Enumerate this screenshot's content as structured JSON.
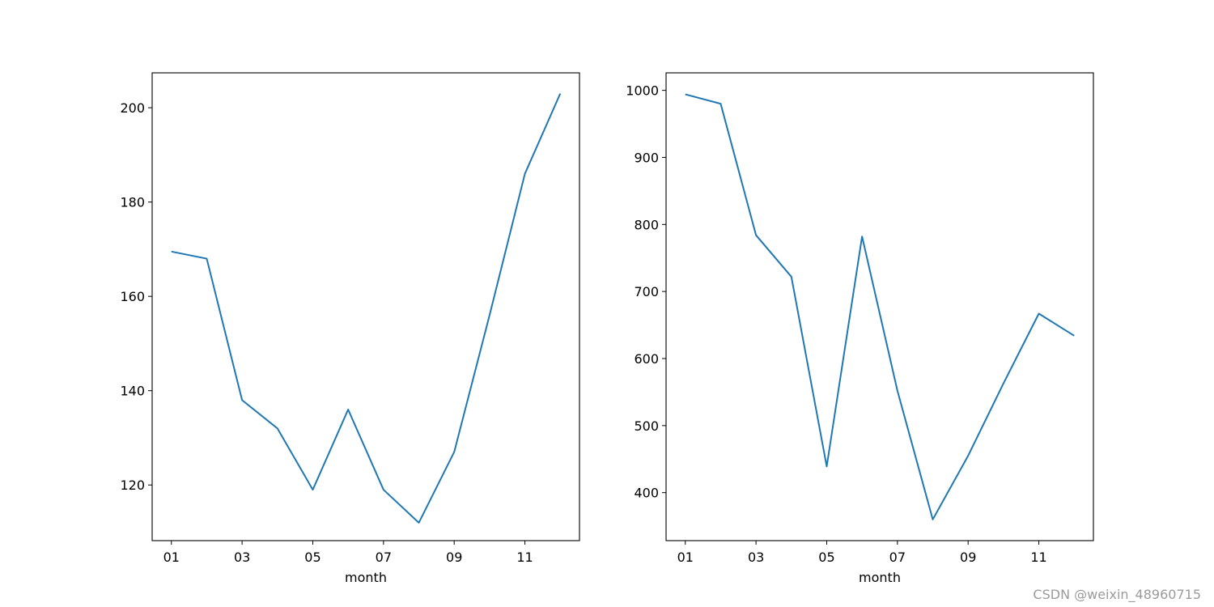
{
  "colors": {
    "line": "#1f77b4",
    "axes": "#000000",
    "watermark": "#9a9a9a"
  },
  "watermark": "CSDN @weixin_48960715",
  "chart_data": [
    {
      "type": "line",
      "title": "",
      "xlabel": "month",
      "ylabel": "",
      "categories": [
        "01",
        "02",
        "03",
        "04",
        "05",
        "06",
        "07",
        "08",
        "09",
        "10",
        "11",
        "12"
      ],
      "xtick_labels": [
        "01",
        "03",
        "05",
        "07",
        "09",
        "11"
      ],
      "values": [
        169.5,
        168,
        138,
        132,
        119,
        136,
        119,
        112,
        127,
        156,
        186,
        203
      ],
      "ylim": [
        108.2,
        207.4
      ],
      "yticks": [
        120,
        140,
        160,
        180,
        200
      ],
      "grid": false,
      "legend": "none"
    },
    {
      "type": "line",
      "title": "",
      "xlabel": "month",
      "ylabel": "",
      "categories": [
        "01",
        "02",
        "03",
        "04",
        "05",
        "06",
        "07",
        "08",
        "09",
        "10",
        "11",
        "12"
      ],
      "xtick_labels": [
        "01",
        "03",
        "05",
        "07",
        "09",
        "11"
      ],
      "values": [
        994,
        980,
        784,
        722,
        439,
        782,
        552,
        360,
        455,
        563,
        667,
        634
      ],
      "ylim": [
        328.4,
        1026.1
      ],
      "yticks": [
        400,
        500,
        600,
        700,
        800,
        900,
        1000
      ],
      "grid": false,
      "legend": "none"
    }
  ]
}
